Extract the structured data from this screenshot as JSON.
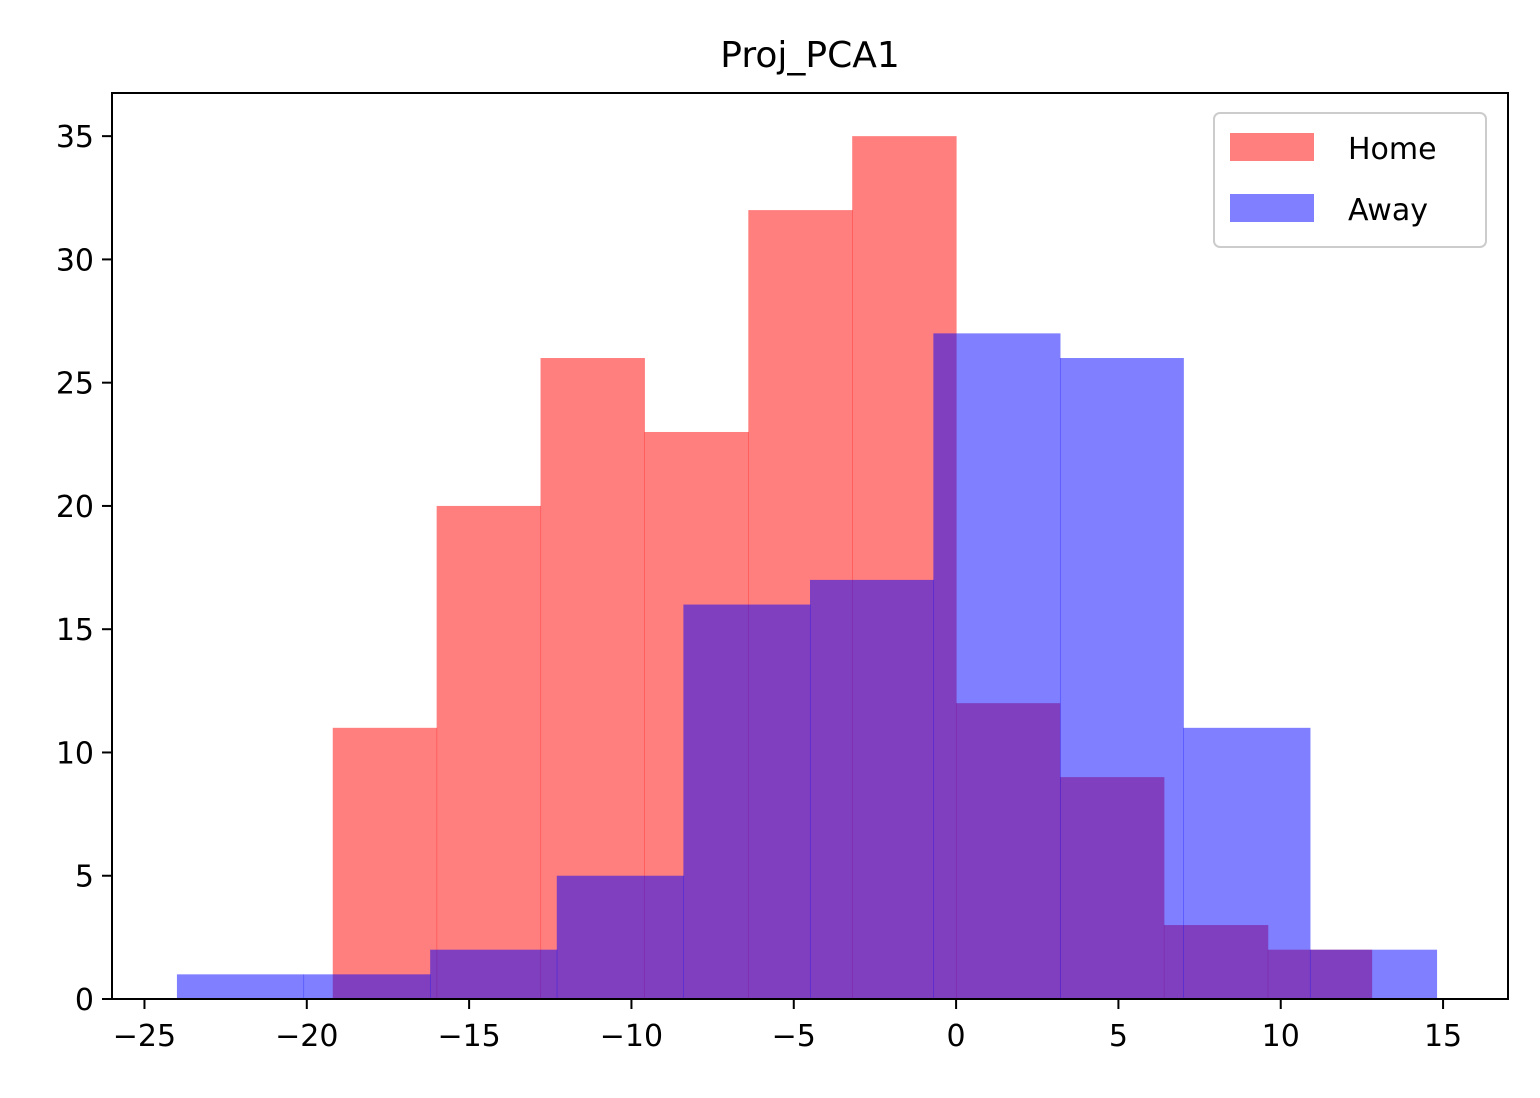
{
  "chart_data": {
    "type": "histogram",
    "title": "Proj_PCA1",
    "xlim": [
      -26,
      17
    ],
    "ylim": [
      0,
      36.75
    ],
    "x_ticks": [
      -25,
      -20,
      -15,
      -10,
      -5,
      0,
      5,
      10,
      15
    ],
    "x_tick_labels": [
      "−25",
      "−20",
      "−15",
      "−10",
      "−5",
      "0",
      "5",
      "10",
      "15"
    ],
    "y_ticks": [
      0,
      5,
      10,
      15,
      20,
      25,
      30,
      35
    ],
    "y_tick_labels": [
      "0",
      "5",
      "10",
      "15",
      "20",
      "25",
      "30",
      "35"
    ],
    "legend_position": "top-right",
    "series": [
      {
        "name": "Home",
        "color": "#ff0000",
        "alpha": 0.5,
        "bin_edges": [
          -19.2,
          -16.0,
          -12.8,
          -9.6,
          -6.4,
          -3.2,
          0.0,
          3.2,
          6.4,
          9.6,
          12.8
        ],
        "counts": [
          11,
          20,
          26,
          23,
          32,
          35,
          12,
          9,
          3,
          2
        ]
      },
      {
        "name": "Away",
        "color": "#0000ff",
        "alpha": 0.5,
        "bin_edges": [
          -24.0,
          -20.1,
          -16.2,
          -12.3,
          -8.4,
          -4.5,
          -0.7,
          3.2,
          7.0,
          10.9,
          14.8
        ],
        "counts": [
          1,
          1,
          2,
          5,
          16,
          17,
          27,
          26,
          11,
          2
        ]
      }
    ]
  }
}
